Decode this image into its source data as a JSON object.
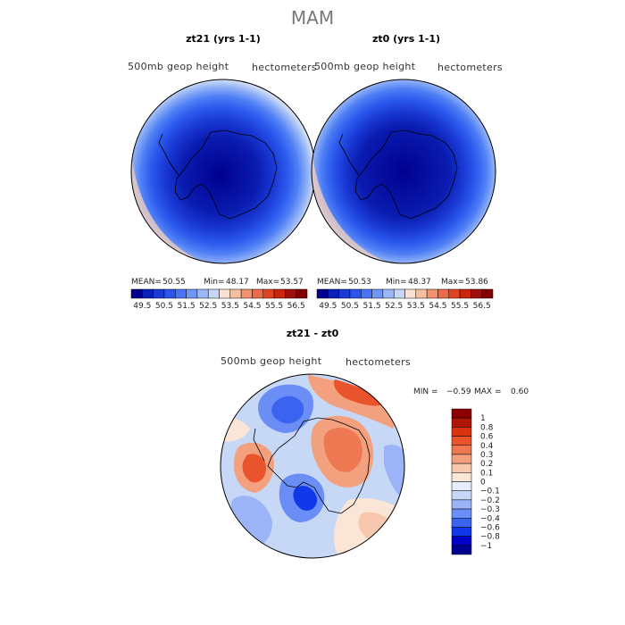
{
  "title": "MAM",
  "colors": {
    "scale": [
      "#00008f",
      "#0b1fb5",
      "#1a3ad6",
      "#2b55ee",
      "#4a74f5",
      "#7096f7",
      "#9bb7f5",
      "#c7d6f2",
      "#fbe3d4",
      "#f6bfa2",
      "#f1926f",
      "#ec6a47",
      "#e2431f",
      "#c8260e",
      "#a0100a",
      "#800000"
    ],
    "diff": [
      "#000090",
      "#0000c8",
      "#1038e8",
      "#3a64f0",
      "#6a8ef5",
      "#9ab4f7",
      "#c6d8f6",
      "#e6eef9",
      "#fbe5d6",
      "#f8c8ae",
      "#f3a07f",
      "#ee7852",
      "#e9542c",
      "#d8340f",
      "#b0150a",
      "#8b0000"
    ]
  },
  "chart_data": [
    {
      "type": "heatmap",
      "title": "zt21 (yrs 1-1)",
      "left_label": "500mb geop height",
      "right_label": "hectometers",
      "stats": {
        "mean_label": "MEAN=",
        "mean": "50.55",
        "min_label": "Min=",
        "min": "48.17",
        "max_label": "Max=",
        "max": "53.57"
      },
      "colorbar_ticks": [
        "49.5",
        "50.5",
        "51.5",
        "52.5",
        "53.5",
        "54.5",
        "55.5",
        "56.5"
      ]
    },
    {
      "type": "heatmap",
      "title": "zt0 (yrs 1-1)",
      "left_label": "500mb geop height",
      "right_label": "hectometers",
      "stats": {
        "mean_label": "MEAN=",
        "mean": "50.53",
        "min_label": "Min=",
        "min": "48.37",
        "max_label": "Max=",
        "max": "53.86"
      },
      "colorbar_ticks": [
        "49.5",
        "50.5",
        "51.5",
        "52.5",
        "53.5",
        "54.5",
        "55.5",
        "56.5"
      ]
    },
    {
      "type": "heatmap",
      "title": "zt21 - zt0",
      "left_label": "500mb geop height",
      "right_label": "hectometers",
      "stats": {
        "min_label": "MIN =",
        "min": "−0.59",
        "max_label": "MAX =",
        "max": "0.60"
      },
      "colorbar_ticks": [
        "1",
        "0.8",
        "0.6",
        "0.4",
        "0.3",
        "0.2",
        "0.1",
        "0",
        "−0.1",
        "−0.2",
        "−0.3",
        "−0.4",
        "−0.6",
        "−0.8",
        "−1"
      ]
    }
  ]
}
